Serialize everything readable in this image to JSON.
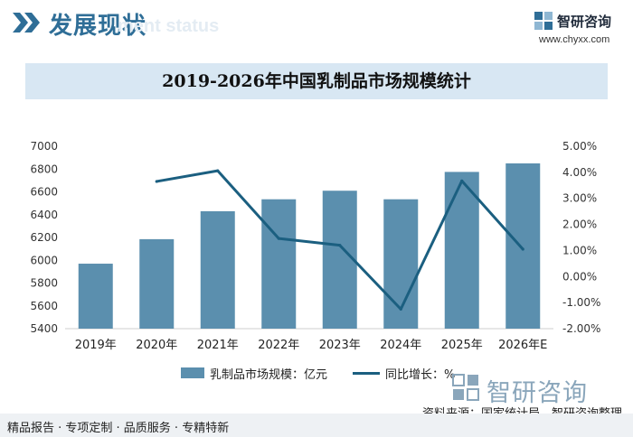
{
  "header": {
    "title": "发展现状",
    "ghost_subtitle": "ment status",
    "logo_name": "智研咨询",
    "logo_url": "www.chyxx.com"
  },
  "chart_title": "2019-2026年中国乳制品市场规模统计",
  "chart_data": {
    "type": "bar",
    "title": "2019-2026年中国乳制品市场规模统计",
    "categories": [
      "2019年",
      "2020年",
      "2021年",
      "2022年",
      "2023年",
      "2024年",
      "2025年",
      "2026年E"
    ],
    "series": [
      {
        "name": "乳制品市场规模：亿元",
        "type": "bar",
        "axis": "left",
        "values": [
          5970,
          6185,
          6430,
          6535,
          6610,
          6535,
          6775,
          6850
        ]
      },
      {
        "name": "同比增长：%",
        "type": "line",
        "axis": "right",
        "values": [
          null,
          3.65,
          4.06,
          1.46,
          1.2,
          -1.25,
          3.67,
          1.05
        ]
      }
    ],
    "y_left": {
      "min": 5400,
      "max": 7000,
      "ticks": [
        "5400",
        "5600",
        "5800",
        "6000",
        "6200",
        "6400",
        "6600",
        "6800",
        "7000"
      ]
    },
    "y_right": {
      "min": -2,
      "max": 5,
      "ticks": [
        "-2.00%",
        "-1.00%",
        "0.00%",
        "1.00%",
        "2.00%",
        "3.00%",
        "4.00%",
        "5.00%"
      ]
    },
    "colors": {
      "bar": "#5b8fae",
      "line": "#1b5f80",
      "grid": "#e6e6e6"
    },
    "legend_position": "bottom-center"
  },
  "legend": {
    "bar_label": "乳制品市场规模：亿元",
    "line_label": "同比增长：%"
  },
  "watermark_text": "智研咨询",
  "source": "资料来源：国家统计局、智研咨询整理",
  "footer": "精品报告 · 专项定制 · 品质服务 · 专精特新"
}
